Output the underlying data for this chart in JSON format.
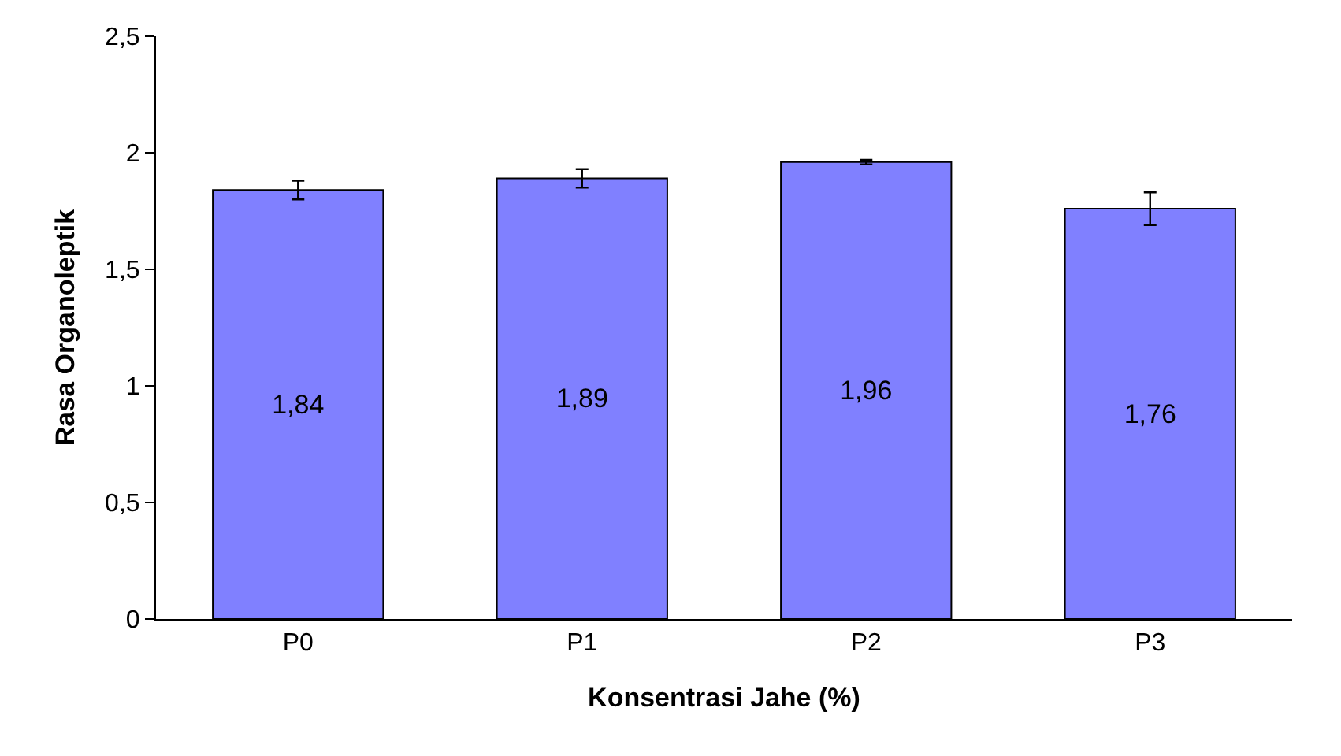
{
  "chart_data": {
    "type": "bar",
    "xlabel": "Konsentrasi Jahe (%)",
    "ylabel": "Rasa Organoleptik",
    "categories": [
      "P0",
      "P1",
      "P2",
      "P3"
    ],
    "values": [
      1.84,
      1.89,
      1.96,
      1.76
    ],
    "value_labels": [
      "1,84",
      "1,89",
      "1,96",
      "1,76"
    ],
    "errors": [
      0.04,
      0.04,
      0.01,
      0.07
    ],
    "color": "#8080ff",
    "ylim": [
      0,
      2.5
    ],
    "yticks": [
      0,
      {
        "value": 0.5,
        "label": "0,5"
      },
      1,
      {
        "value": 1.5,
        "label": "1,5"
      },
      2,
      {
        "value": 2.5,
        "label": "2,5"
      }
    ]
  }
}
